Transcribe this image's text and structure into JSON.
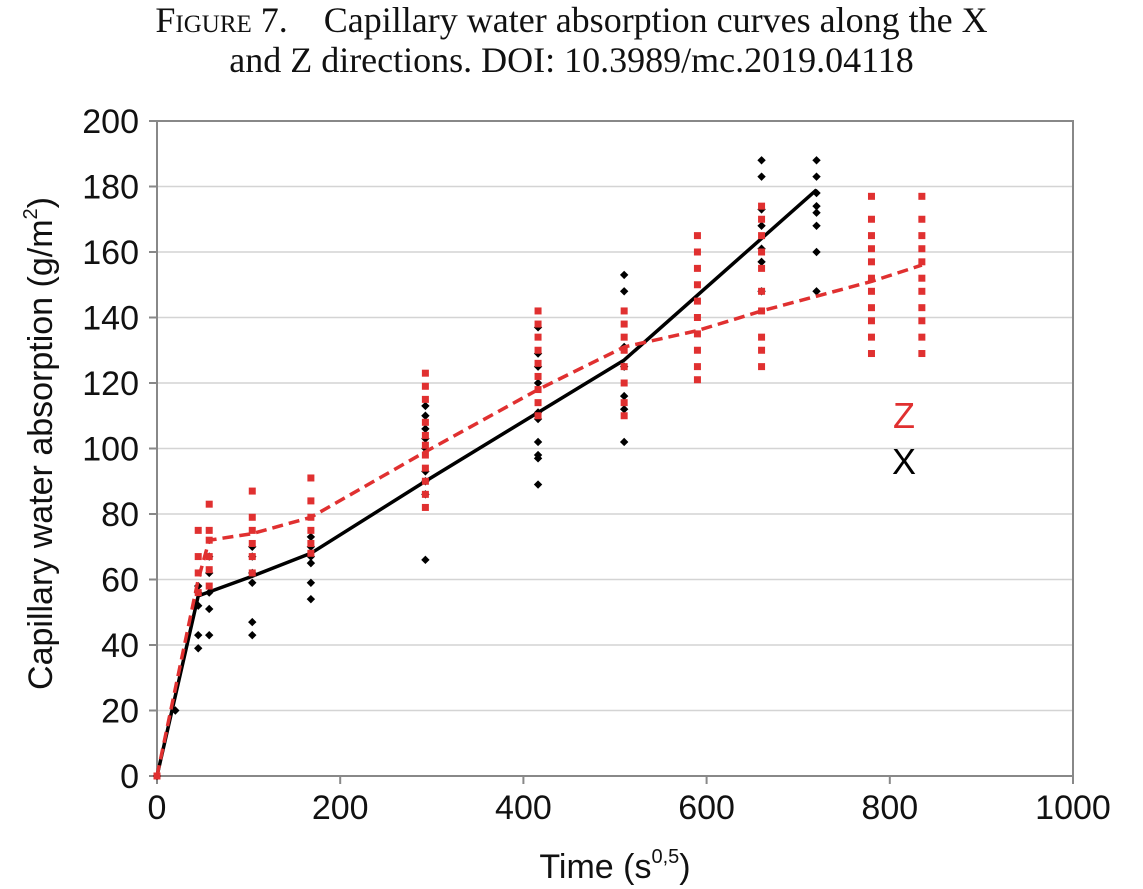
{
  "caption": {
    "figure_label": "Figure 7.",
    "line1": "Capillary water absorption curves along the X",
    "line2": "and Z directions. DOI: 10.3989/mc.2019.04118"
  },
  "chart_data": {
    "type": "line",
    "title": "",
    "xlabel": "Time (s",
    "xlabel_sup": "0,5",
    "xlabel_close": ")",
    "ylabel": "Capillary water absorption (g/m",
    "ylabel_sup": "2",
    "ylabel_close": ")",
    "xlim": [
      0,
      1000
    ],
    "ylim": [
      0,
      200
    ],
    "xticks": [
      0,
      200,
      400,
      600,
      800,
      1000
    ],
    "yticks": [
      0,
      20,
      40,
      60,
      80,
      100,
      120,
      140,
      160,
      180,
      200
    ],
    "grid": "horizontal",
    "legend_labels": [
      "Z",
      "X"
    ],
    "series": [
      {
        "name": "X",
        "color": "#000000",
        "line_style": "solid",
        "marker": "diamond",
        "mean_line": {
          "x": [
            0,
            45,
            104,
            168,
            293,
            416,
            510,
            720
          ],
          "y": [
            0,
            55,
            61,
            68,
            90,
            111,
            127,
            179
          ]
        },
        "points": [
          {
            "x": 0,
            "y": [
              0
            ]
          },
          {
            "x": 20,
            "y": [
              20
            ]
          },
          {
            "x": 45,
            "y": [
              39,
              43,
              52,
              56,
              58
            ]
          },
          {
            "x": 57,
            "y": [
              43,
              51,
              56,
              62,
              67
            ]
          },
          {
            "x": 104,
            "y": [
              43,
              47,
              59,
              62,
              67,
              70
            ]
          },
          {
            "x": 168,
            "y": [
              54,
              59,
              65,
              67,
              70,
              73
            ]
          },
          {
            "x": 293,
            "y": [
              66,
              86,
              90,
              93,
              100,
              103,
              106,
              110,
              113
            ]
          },
          {
            "x": 416,
            "y": [
              89,
              97,
              98,
              102,
              109,
              111,
              120,
              125,
              129,
              137
            ]
          },
          {
            "x": 510,
            "y": [
              102,
              112,
              116,
              125,
              131,
              148,
              153
            ]
          },
          {
            "x": 660,
            "y": [
              148,
              157,
              161,
              168,
              173,
              183,
              188
            ]
          },
          {
            "x": 720,
            "y": [
              148,
              160,
              168,
              172,
              174,
              178,
              183,
              188
            ]
          }
        ]
      },
      {
        "name": "Z",
        "color": "#e03030",
        "line_style": "dashed",
        "marker": "square",
        "mean_line": {
          "x": [
            0,
            45,
            57,
            104,
            168,
            293,
            416,
            510,
            590,
            660,
            780,
            835
          ],
          "y": [
            0,
            60,
            72,
            74,
            79,
            99,
            118,
            131,
            136,
            142,
            151,
            156
          ]
        },
        "points": [
          {
            "x": 0,
            "y": [
              0
            ]
          },
          {
            "x": 45,
            "y": [
              56,
              62,
              67,
              75
            ]
          },
          {
            "x": 57,
            "y": [
              58,
              63,
              67,
              72,
              75,
              83
            ]
          },
          {
            "x": 104,
            "y": [
              62,
              67,
              71,
              75,
              79,
              87
            ]
          },
          {
            "x": 168,
            "y": [
              68,
              71,
              75,
              79,
              84,
              91
            ]
          },
          {
            "x": 293,
            "y": [
              82,
              86,
              90,
              94,
              98,
              101,
              104,
              108,
              115,
              119,
              123
            ]
          },
          {
            "x": 416,
            "y": [
              110,
              114,
              118,
              122,
              126,
              130,
              134,
              138,
              142
            ]
          },
          {
            "x": 510,
            "y": [
              110,
              114,
              120,
              125,
              130,
              134,
              138,
              142
            ]
          },
          {
            "x": 590,
            "y": [
              121,
              125,
              130,
              135,
              140,
              145,
              150,
              155,
              160,
              165
            ]
          },
          {
            "x": 660,
            "y": [
              125,
              130,
              134,
              142,
              148,
              155,
              160,
              165,
              170,
              174
            ]
          },
          {
            "x": 780,
            "y": [
              129,
              134,
              139,
              143,
              148,
              152,
              157,
              161,
              165,
              170,
              177
            ]
          },
          {
            "x": 835,
            "y": [
              129,
              134,
              139,
              143,
              148,
              152,
              157,
              161,
              165,
              170,
              177
            ]
          }
        ]
      }
    ]
  }
}
